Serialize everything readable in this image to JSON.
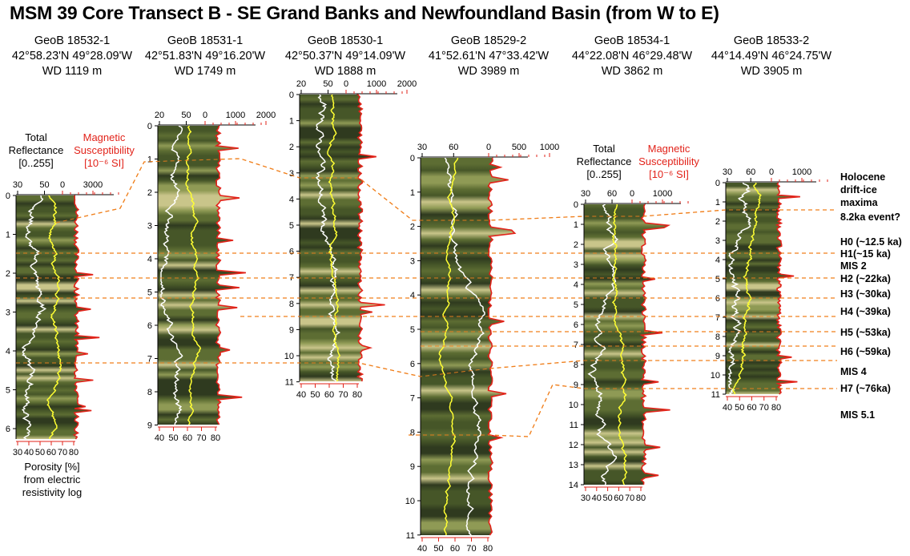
{
  "title": "MSM 39 Core Transect B - SE Grand Banks and Newfoundland Basin (from W to E)",
  "colors": {
    "reflectance_curve": "#ffffff",
    "porosity_curve": "#ffff33",
    "susceptibility_curve": "#e2231a",
    "correlation_line": "#f07f1c",
    "core_base": "#4b5a2c"
  },
  "legend": {
    "reflectance_title": "Total\nReflectance\n[0..255]",
    "susceptibility_title": "Magnetic\nSusceptibility\n[10⁻⁶ SI]",
    "porosity_title": "Porosity [%]\nfrom electric\nresistivity log"
  },
  "cores": [
    {
      "id": "GeoB 18532-1",
      "lat_lon": "42°58.23'N 49°28.09'W",
      "water_depth": "WD 1119 m",
      "depth_ticks": [
        "0",
        "1",
        "2",
        "3",
        "4",
        "5",
        "6"
      ],
      "refl_ticks": [
        "30",
        "50",
        "0",
        "3000"
      ],
      "por_ticks": [
        "30",
        "40",
        "50",
        "60",
        "70",
        "80"
      ]
    },
    {
      "id": "GeoB 18531-1",
      "lat_lon": "42°51.83'N 49°16.20'W",
      "water_depth": "WD 1749 m",
      "depth_ticks": [
        "0",
        "1",
        "2",
        "3",
        "4",
        "5",
        "6",
        "7",
        "8",
        "9"
      ],
      "refl_ticks": [
        "20",
        "50",
        "0",
        "1000",
        "2000"
      ],
      "por_ticks": [
        "40",
        "50",
        "60",
        "70",
        "80"
      ]
    },
    {
      "id": "GeoB 18530-1",
      "lat_lon": "42°50.37'N 49°14.09'W",
      "water_depth": "WD 1888 m",
      "depth_ticks": [
        "0",
        "1",
        "2",
        "3",
        "4",
        "5",
        "6",
        "7",
        "8",
        "9",
        "10",
        "11"
      ],
      "refl_ticks": [
        "20",
        "50",
        "0",
        "1000",
        "2000"
      ],
      "por_ticks": [
        "40",
        "50",
        "60",
        "70",
        "80"
      ]
    },
    {
      "id": "GeoB 18529-2",
      "lat_lon": "41°52.61'N 47°33.42'W",
      "water_depth": "WD 3989 m",
      "depth_ticks": [
        "0",
        "1",
        "2",
        "3",
        "4",
        "5",
        "6",
        "7",
        "8",
        "9",
        "10",
        "11"
      ],
      "refl_ticks": [
        "30",
        "60",
        "0",
        "500",
        "1000"
      ],
      "por_ticks": [
        "40",
        "50",
        "60",
        "70",
        "80"
      ]
    },
    {
      "id": "GeoB 18534-1",
      "lat_lon": "44°22.08'N 46°29.48'W",
      "water_depth": "WD 3862 m",
      "depth_ticks": [
        "0",
        "1",
        "2",
        "3",
        "4",
        "5",
        "6",
        "7",
        "8",
        "9",
        "10",
        "11",
        "12",
        "13",
        "14"
      ],
      "refl_ticks": [
        "30",
        "60",
        "0",
        "1000"
      ],
      "por_ticks": [
        "30",
        "40",
        "50",
        "60",
        "70",
        "80"
      ]
    },
    {
      "id": "GeoB 18533-2",
      "lat_lon": "44°14.49'N 46°24.75'W",
      "water_depth": "WD 3905 m",
      "depth_ticks": [
        "0",
        "1",
        "2",
        "3",
        "4",
        "5",
        "6",
        "7",
        "8",
        "9",
        "10",
        "11"
      ],
      "refl_ticks": [
        "30",
        "60",
        "0",
        "1000"
      ],
      "por_ticks": [
        "40",
        "50",
        "60",
        "70",
        "80"
      ]
    }
  ],
  "events": [
    {
      "label": "Holocene\ndrift-ice\nmaxima"
    },
    {
      "label": "8.2ka event?"
    },
    {
      "label": "H0 (~12.5 ka)"
    },
    {
      "label": "H1(~15 ka)"
    },
    {
      "label": "MIS 2"
    },
    {
      "label": "H2 (~22ka)"
    },
    {
      "label": "H3 (~30ka)"
    },
    {
      "label": "H4 (~39ka)"
    },
    {
      "label": "H5 (~53ka)"
    },
    {
      "label": "H6 (~59ka)"
    },
    {
      "label": "MIS 4"
    },
    {
      "label": "H7 (~76ka)"
    },
    {
      "label": "MIS 5.1"
    }
  ]
}
